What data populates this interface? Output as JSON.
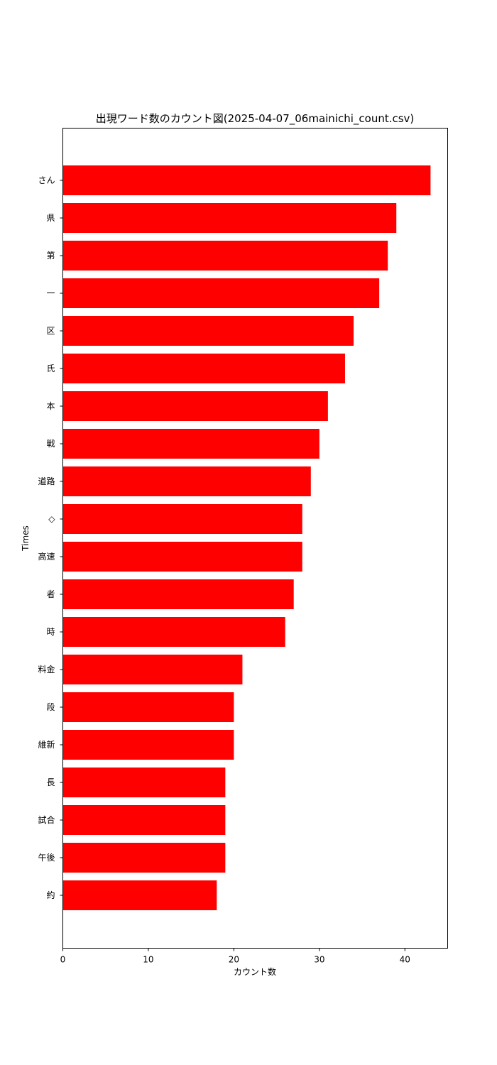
{
  "chart_data": {
    "type": "bar",
    "orientation": "horizontal",
    "title": "出現ワード数のカウント図(2025-04-07_06mainichi_count.csv)",
    "xlabel": "カウント数",
    "ylabel": "Times",
    "xlim": [
      0,
      45
    ],
    "xticks": [
      0,
      10,
      20,
      30,
      40
    ],
    "grid": false,
    "bar_color": "#ff0000",
    "categories": [
      "さん",
      "県",
      "第",
      "一",
      "区",
      "氏",
      "本",
      "戦",
      "道路",
      "◇",
      "高速",
      "者",
      "時",
      "料金",
      "段",
      "維新",
      "長",
      "試合",
      "午後",
      "約"
    ],
    "values": [
      43,
      39,
      38,
      37,
      34,
      33,
      31,
      30,
      29,
      28,
      28,
      27,
      26,
      21,
      20,
      20,
      19,
      19,
      19,
      18
    ]
  }
}
